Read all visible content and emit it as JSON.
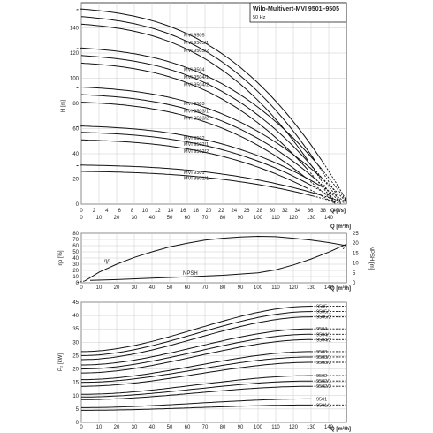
{
  "header": {
    "title": "Wilo-Multivert-MVI 9501–9505",
    "subtitle": "50 Hz"
  },
  "chart_data": [
    {
      "type": "line",
      "name": "head-chart",
      "ylabel": "H [m]",
      "xlabel_top": "Q [l/s]",
      "xlabel_bottom": "Q [m³/h]",
      "ylim": [
        0,
        160
      ],
      "xlim_m3h": [
        0,
        150
      ],
      "xlim_ls": [
        0,
        42
      ],
      "yticks": [
        0,
        20,
        40,
        60,
        80,
        100,
        120,
        140
      ],
      "xticks_ls": [
        0,
        2,
        4,
        6,
        8,
        10,
        12,
        14,
        16,
        18,
        20,
        22,
        24,
        26,
        28,
        30,
        32,
        34,
        36,
        38,
        40
      ],
      "xticks_m3h": [
        0,
        10,
        20,
        30,
        40,
        50,
        60,
        70,
        80,
        90,
        100,
        110,
        120,
        130,
        140
      ],
      "grid": true,
      "series": [
        {
          "name": "MVI 9505",
          "h0": 155,
          "qmax": 42,
          "shutoff_ext": 5
        },
        {
          "name": "MVI 9505/1",
          "h0": 149,
          "qmax": 41,
          "shutoff_ext": 0
        },
        {
          "name": "MVI 9505/2",
          "h0": 143,
          "qmax": 40,
          "shutoff_ext": 0
        },
        {
          "name": "MVI 9504",
          "h0": 124,
          "qmax": 42,
          "shutoff_ext": 4
        },
        {
          "name": "MVI 9504/1",
          "h0": 118,
          "qmax": 41,
          "shutoff_ext": 0
        },
        {
          "name": "MVI 9504/2",
          "h0": 112,
          "qmax": 40,
          "shutoff_ext": 0
        },
        {
          "name": "MVI 9503",
          "h0": 93,
          "qmax": 42,
          "shutoff_ext": 3
        },
        {
          "name": "MVI 9503/1",
          "h0": 87,
          "qmax": 41,
          "shutoff_ext": 0
        },
        {
          "name": "MVI 9503/2",
          "h0": 81,
          "qmax": 40,
          "shutoff_ext": 0
        },
        {
          "name": "MVI 9502",
          "h0": 62,
          "qmax": 42,
          "shutoff_ext": 2
        },
        {
          "name": "MVI 9502/1",
          "h0": 57,
          "qmax": 41,
          "shutoff_ext": 0
        },
        {
          "name": "MVI 9502/2",
          "h0": 51,
          "qmax": 40,
          "shutoff_ext": 0
        },
        {
          "name": "MVI 9501",
          "h0": 31,
          "qmax": 42,
          "shutoff_ext": 1
        },
        {
          "name": "MVI 9501/1",
          "h0": 26,
          "qmax": 41,
          "shutoff_ext": 0
        }
      ]
    },
    {
      "type": "line",
      "name": "efficiency-npsh-chart",
      "ylabel_left": "ηp [%]",
      "ylabel_right": "NPSH [m]",
      "xlabel": "Q [m³/h]",
      "ylim_left": [
        0,
        80
      ],
      "ylim_right": [
        0,
        25
      ],
      "yticks_left": [
        0,
        10,
        20,
        30,
        40,
        50,
        60,
        70,
        80
      ],
      "yticks_right": [
        0,
        5,
        10,
        15,
        20,
        25
      ],
      "xticks": [
        0,
        10,
        20,
        30,
        40,
        50,
        60,
        70,
        80,
        90,
        100,
        110,
        120,
        130,
        140
      ],
      "efficiency": {
        "label": "ηp",
        "q": [
          2,
          10,
          20,
          30,
          40,
          50,
          60,
          70,
          80,
          90,
          100,
          110,
          120,
          130,
          140,
          150
        ],
        "v": [
          3,
          17,
          30,
          41,
          50,
          58,
          64,
          69,
          72,
          74,
          75,
          74.5,
          72,
          69,
          65,
          60
        ]
      },
      "npsh": {
        "label": "NPSH",
        "q": [
          5,
          20,
          40,
          60,
          80,
          100,
          110,
          120,
          130,
          140,
          150
        ],
        "v": [
          1.2,
          1.6,
          2.3,
          3.0,
          3.8,
          5.0,
          6.5,
          9.0,
          12.0,
          15.5,
          19.5
        ]
      }
    },
    {
      "type": "line",
      "name": "power-chart",
      "ylabel": "P₂ [kW]",
      "xlabel": "Q [m³/h]",
      "ylim": [
        0,
        45
      ],
      "yticks": [
        0,
        5,
        10,
        15,
        20,
        25,
        30,
        35,
        40,
        45
      ],
      "xticks": [
        0,
        10,
        20,
        30,
        40,
        50,
        60,
        70,
        80,
        90,
        100,
        110,
        120,
        130,
        140
      ],
      "series": [
        {
          "name": "9505",
          "p0": 26.5,
          "p1": 43.5
        },
        {
          "name": "9505/1",
          "p0": 25.0,
          "p1": 41.5
        },
        {
          "name": "9505/2",
          "p0": 23.5,
          "p1": 39.5
        },
        {
          "name": "9504",
          "p0": 21.5,
          "p1": 35.0
        },
        {
          "name": "9504/1",
          "p0": 20.0,
          "p1": 33.0
        },
        {
          "name": "9504/2",
          "p0": 18.5,
          "p1": 31.0
        },
        {
          "name": "9503",
          "p0": 16.0,
          "p1": 26.5
        },
        {
          "name": "9503/1",
          "p0": 15.0,
          "p1": 24.5
        },
        {
          "name": "9503/2",
          "p0": 13.5,
          "p1": 22.5
        },
        {
          "name": "9502",
          "p0": 10.5,
          "p1": 17.5
        },
        {
          "name": "9502/1",
          "p0": 9.5,
          "p1": 15.5
        },
        {
          "name": "9502/2",
          "p0": 8.5,
          "p1": 13.5
        },
        {
          "name": "9501",
          "p0": 5.5,
          "p1": 8.8
        },
        {
          "name": "9501/1",
          "p0": 4.5,
          "p1": 6.5
        }
      ]
    }
  ]
}
